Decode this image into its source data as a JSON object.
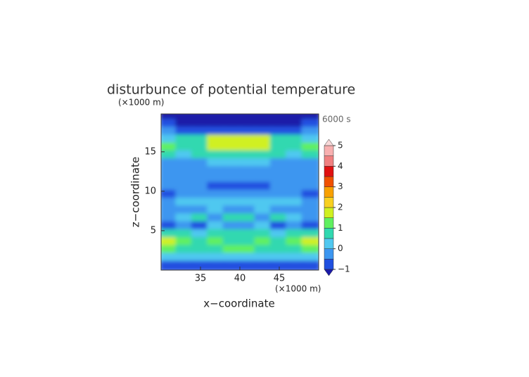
{
  "chart_data": {
    "type": "contour",
    "title": "disturbunce of potential temperature",
    "time_label": "6000 s",
    "x_label": "x−coordinate",
    "y_label": "z−coordinate",
    "x_unit": "(×1000 m)",
    "y_unit": "(×1000 m)",
    "xlim": [
      30,
      50
    ],
    "ylim": [
      0,
      19.8
    ],
    "xticks": [
      35,
      40,
      45
    ],
    "yticks": [
      5,
      10,
      15
    ],
    "x": [
      31,
      33,
      35,
      37,
      39,
      41,
      43,
      45,
      47,
      49
    ],
    "z": [
      19.5,
      18.5,
      17.5,
      16.5,
      15.5,
      14.5,
      13.5,
      12.5,
      11.5,
      10.5,
      9.5,
      8.5,
      7.5,
      6.5,
      5.5,
      4.5,
      3.5,
      2.5,
      1.5,
      0.5
    ],
    "values": [
      [
        -1.1,
        -1.2,
        -1.2,
        -1.2,
        -1.2,
        -1.2,
        -1.2,
        -1.2,
        -1.2,
        -1.1
      ],
      [
        -1.0,
        -1.2,
        -1.2,
        -1.2,
        -1.2,
        -1.2,
        -1.2,
        -1.2,
        -1.2,
        -1.0
      ],
      [
        -0.3,
        -0.6,
        -0.7,
        -0.8,
        -0.8,
        -0.8,
        -0.8,
        -0.7,
        -0.6,
        -0.3
      ],
      [
        0.3,
        0.6,
        0.9,
        1.7,
        1.9,
        1.9,
        1.7,
        0.9,
        0.6,
        0.3
      ],
      [
        1.2,
        0.9,
        0.8,
        1.6,
        1.8,
        1.8,
        1.6,
        0.8,
        0.9,
        1.2
      ],
      [
        0.6,
        0.3,
        0.5,
        0.6,
        0.8,
        0.8,
        0.6,
        0.5,
        0.3,
        0.6
      ],
      [
        -0.2,
        -0.3,
        -0.2,
        0.1,
        0.2,
        0.2,
        0.1,
        -0.2,
        -0.3,
        -0.2
      ],
      [
        -0.3,
        -0.3,
        -0.4,
        -0.3,
        -0.2,
        -0.2,
        -0.3,
        -0.4,
        -0.3,
        -0.3
      ],
      [
        -0.3,
        -0.3,
        -0.3,
        -0.2,
        -0.3,
        -0.3,
        -0.2,
        -0.3,
        -0.3,
        -0.3
      ],
      [
        -0.4,
        -0.3,
        -0.5,
        -0.7,
        -0.7,
        -0.7,
        -0.7,
        -0.5,
        -0.3,
        -0.4
      ],
      [
        -0.7,
        -0.3,
        -0.2,
        -0.3,
        -0.2,
        -0.2,
        -0.3,
        -0.2,
        -0.3,
        -0.7
      ],
      [
        -0.2,
        0.1,
        0.3,
        0.2,
        0.1,
        0.1,
        0.2,
        0.3,
        0.1,
        -0.2
      ],
      [
        -0.4,
        -0.2,
        -0.3,
        0.2,
        -0.3,
        -0.3,
        0.2,
        -0.3,
        -0.2,
        -0.4
      ],
      [
        -0.2,
        0.3,
        0.6,
        -0.2,
        0.5,
        0.5,
        -0.2,
        0.6,
        0.3,
        -0.2
      ],
      [
        -0.6,
        -0.4,
        -0.6,
        0.3,
        -0.5,
        -0.5,
        0.3,
        -0.6,
        -0.4,
        -0.6
      ],
      [
        0.6,
        0.8,
        0.4,
        0.6,
        0.7,
        0.7,
        0.6,
        0.4,
        0.8,
        0.6
      ],
      [
        1.8,
        1.4,
        0.8,
        1.2,
        0.9,
        0.9,
        1.2,
        0.8,
        1.4,
        1.8
      ],
      [
        1.2,
        0.9,
        0.6,
        0.7,
        1.1,
        1.1,
        0.7,
        0.6,
        0.9,
        1.2
      ],
      [
        0.3,
        0.4,
        0.2,
        0.3,
        0.3,
        0.3,
        0.3,
        0.2,
        0.4,
        0.3
      ],
      [
        -0.7,
        -0.6,
        -0.7,
        -0.6,
        -0.6,
        -0.6,
        -0.6,
        -0.7,
        -0.6,
        -0.7
      ]
    ],
    "levels": [
      -1,
      -0.5,
      0,
      0.5,
      1,
      1.5,
      2,
      2.5,
      3,
      3.5,
      4,
      4.5,
      5
    ],
    "colors": [
      "#1a1aa8",
      "#2050e0",
      "#3c96f0",
      "#50c8f0",
      "#30d8b0",
      "#60f060",
      "#d0f020",
      "#f8d020",
      "#f8a000",
      "#f05000",
      "#e01010",
      "#f08080",
      "#f8b0b0",
      "#f8d8d8"
    ],
    "colorbar_ticks": [
      {
        "value": -1,
        "label": "−1"
      },
      0,
      1,
      2,
      3,
      4,
      5
    ]
  }
}
